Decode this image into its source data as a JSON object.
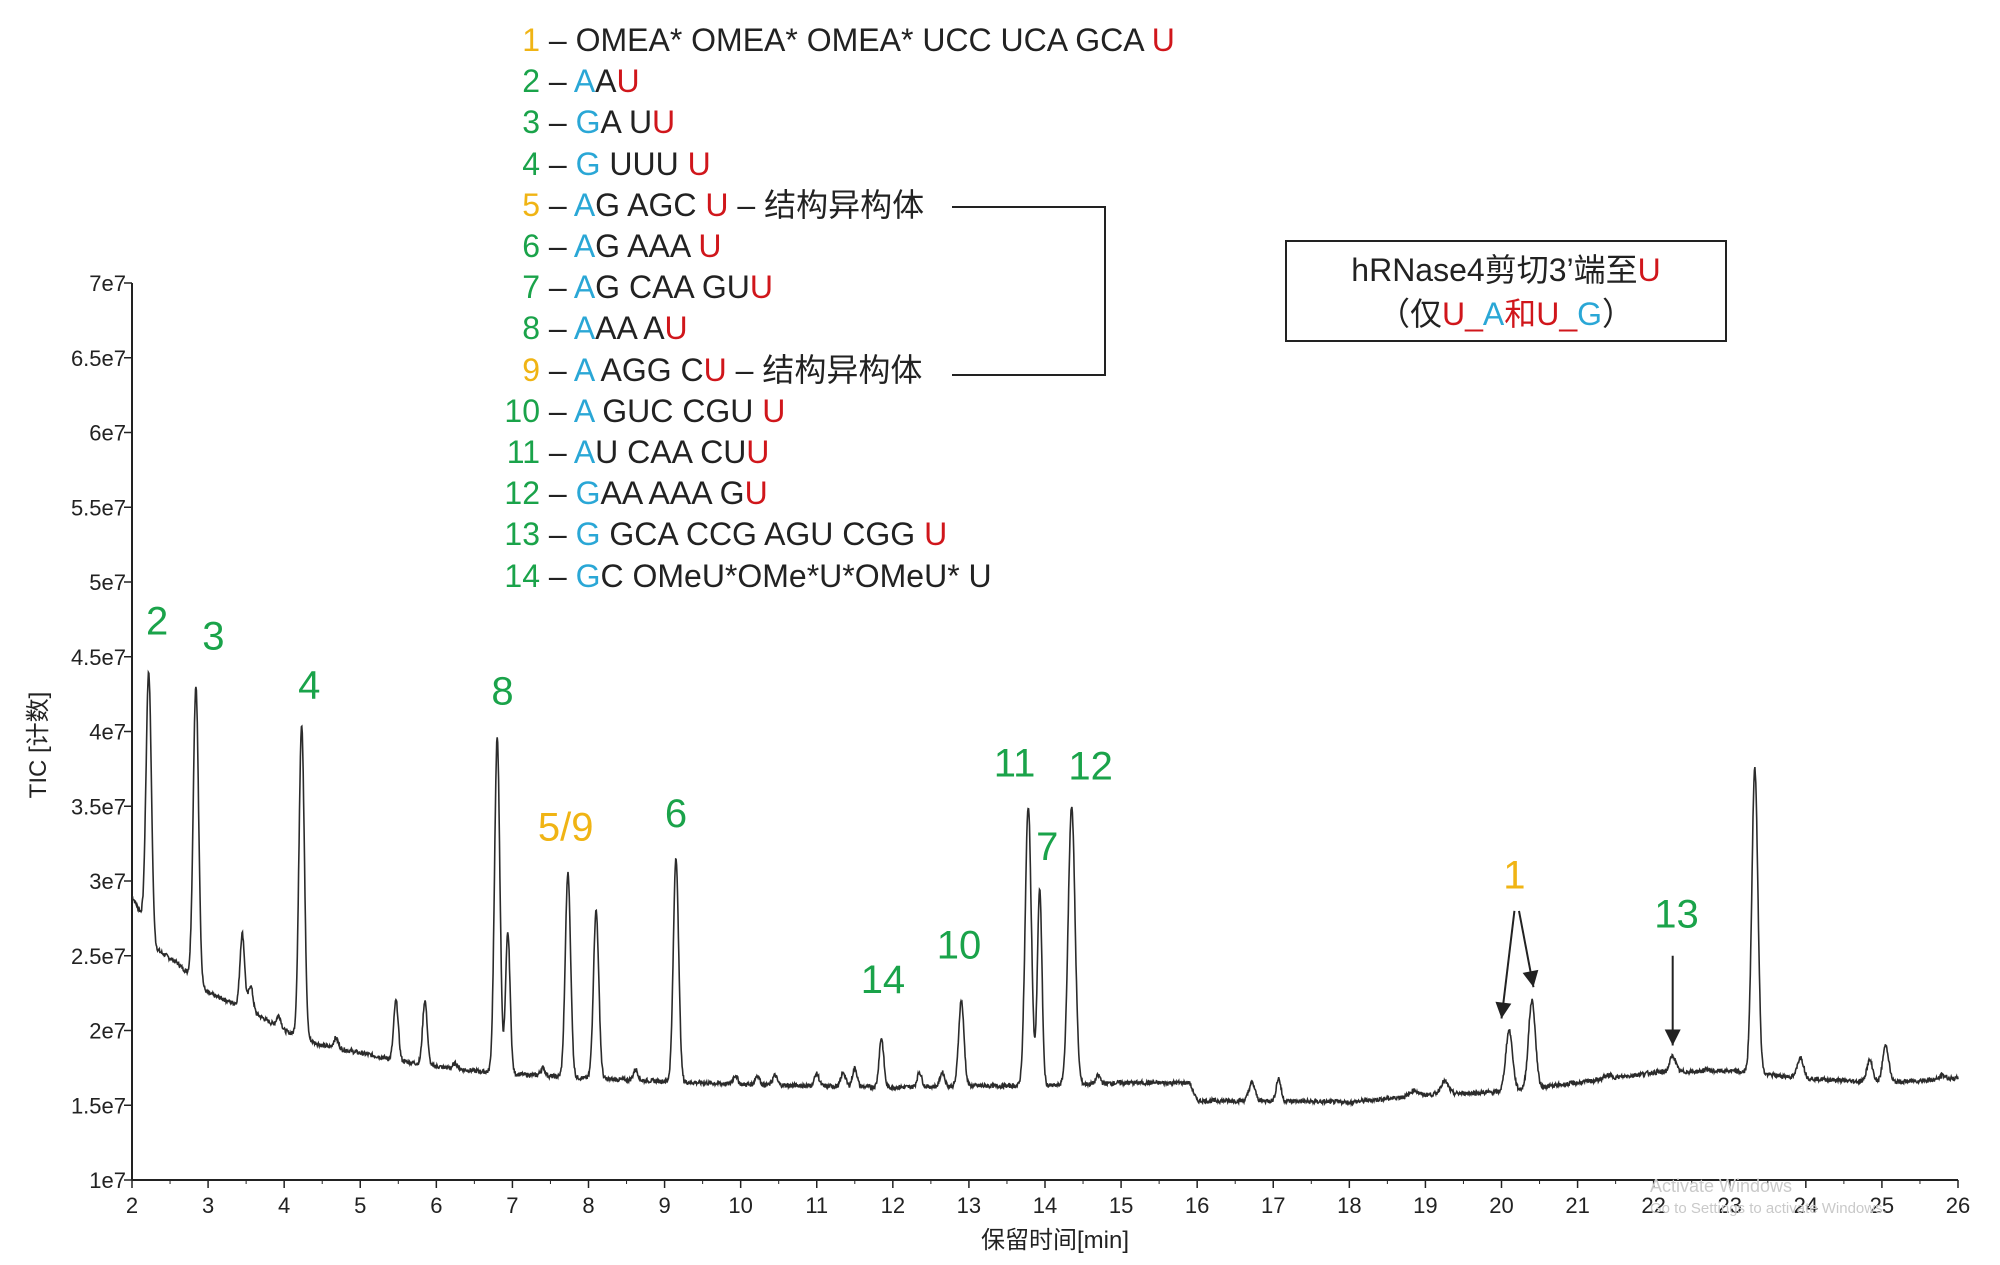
{
  "chart_data": {
    "type": "line",
    "title": "",
    "xlabel": "保留时间[min]",
    "ylabel": "TIC [计数]",
    "xlim": [
      2,
      26
    ],
    "ylim": [
      10000000,
      70000000
    ],
    "x_ticks": [
      2,
      3,
      4,
      5,
      6,
      7,
      8,
      9,
      10,
      11,
      12,
      13,
      14,
      15,
      16,
      17,
      18,
      19,
      20,
      21,
      22,
      23,
      24,
      25,
      26
    ],
    "y_ticks": [
      10000000,
      15000000,
      20000000,
      25000000,
      30000000,
      35000000,
      40000000,
      45000000,
      50000000,
      55000000,
      60000000,
      65000000,
      70000000
    ],
    "y_tick_labels": [
      "1e7",
      "1.5e7",
      "2e7",
      "2.5e7",
      "3e7",
      "3.5e7",
      "4e7",
      "4.5e7",
      "5e7",
      "5.5e7",
      "6e7",
      "6.5e7",
      "7e7"
    ],
    "x_tick_labels": [
      "2",
      "3",
      "4",
      "5",
      "6",
      "7",
      "8",
      "9",
      "10",
      "11",
      "12",
      "13",
      "14",
      "15",
      "16",
      "17",
      "18",
      "19",
      "20",
      "21",
      "22",
      "23",
      "24",
      "25",
      "26"
    ],
    "grid": false,
    "baseline": [
      [
        2.0,
        29000000
      ],
      [
        2.1,
        28000000
      ],
      [
        2.3,
        25500000
      ],
      [
        2.6,
        24500000
      ],
      [
        3.0,
        22500000
      ],
      [
        3.5,
        21500000
      ],
      [
        4.0,
        20000000
      ],
      [
        4.5,
        19000000
      ],
      [
        5.0,
        18500000
      ],
      [
        5.5,
        18000000
      ],
      [
        6.0,
        17600000
      ],
      [
        6.5,
        17300000
      ],
      [
        7.0,
        17100000
      ],
      [
        8.0,
        16800000
      ],
      [
        9.0,
        16600000
      ],
      [
        10.0,
        16400000
      ],
      [
        11.0,
        16300000
      ],
      [
        12.0,
        16200000
      ],
      [
        13.0,
        16300000
      ],
      [
        14.0,
        16300000
      ],
      [
        15.0,
        16500000
      ],
      [
        15.9,
        16500000
      ],
      [
        16.0,
        15300000
      ],
      [
        17.0,
        15300000
      ],
      [
        18.0,
        15200000
      ],
      [
        19.0,
        15700000
      ],
      [
        20.0,
        15900000
      ],
      [
        21.0,
        16500000
      ],
      [
        22.0,
        17200000
      ],
      [
        23.0,
        17300000
      ],
      [
        24.0,
        16800000
      ],
      [
        25.0,
        16500000
      ],
      [
        26.0,
        16800000
      ]
    ],
    "peaks": [
      {
        "x": 2.22,
        "y": 44000000,
        "w": 0.035
      },
      {
        "x": 2.84,
        "y": 43000000,
        "w": 0.035
      },
      {
        "x": 3.45,
        "y": 26500000,
        "w": 0.03
      },
      {
        "x": 3.56,
        "y": 23000000,
        "w": 0.03
      },
      {
        "x": 3.93,
        "y": 21000000,
        "w": 0.03
      },
      {
        "x": 4.23,
        "y": 40500000,
        "w": 0.035
      },
      {
        "x": 4.68,
        "y": 19500000,
        "w": 0.03
      },
      {
        "x": 5.47,
        "y": 22000000,
        "w": 0.03
      },
      {
        "x": 5.85,
        "y": 22000000,
        "w": 0.03
      },
      {
        "x": 6.25,
        "y": 17800000,
        "w": 0.03
      },
      {
        "x": 6.8,
        "y": 39500000,
        "w": 0.035
      },
      {
        "x": 6.94,
        "y": 26500000,
        "w": 0.03
      },
      {
        "x": 7.4,
        "y": 17500000,
        "w": 0.03
      },
      {
        "x": 7.73,
        "y": 30500000,
        "w": 0.035
      },
      {
        "x": 8.1,
        "y": 28000000,
        "w": 0.035
      },
      {
        "x": 8.62,
        "y": 17400000,
        "w": 0.03
      },
      {
        "x": 9.15,
        "y": 31500000,
        "w": 0.035
      },
      {
        "x": 9.93,
        "y": 17000000,
        "w": 0.03
      },
      {
        "x": 10.22,
        "y": 17000000,
        "w": 0.03
      },
      {
        "x": 10.45,
        "y": 17000000,
        "w": 0.03
      },
      {
        "x": 11.0,
        "y": 17100000,
        "w": 0.03
      },
      {
        "x": 11.35,
        "y": 17200000,
        "w": 0.03
      },
      {
        "x": 11.5,
        "y": 17500000,
        "w": 0.03
      },
      {
        "x": 11.85,
        "y": 19500000,
        "w": 0.03
      },
      {
        "x": 12.35,
        "y": 17200000,
        "w": 0.03
      },
      {
        "x": 12.65,
        "y": 17200000,
        "w": 0.03
      },
      {
        "x": 12.9,
        "y": 22000000,
        "w": 0.035
      },
      {
        "x": 13.78,
        "y": 35000000,
        "w": 0.04
      },
      {
        "x": 13.93,
        "y": 29500000,
        "w": 0.03
      },
      {
        "x": 14.35,
        "y": 35000000,
        "w": 0.045
      },
      {
        "x": 14.7,
        "y": 17000000,
        "w": 0.03
      },
      {
        "x": 16.72,
        "y": 16500000,
        "w": 0.04
      },
      {
        "x": 17.07,
        "y": 16800000,
        "w": 0.03
      },
      {
        "x": 18.85,
        "y": 16000000,
        "w": 0.05
      },
      {
        "x": 19.25,
        "y": 16600000,
        "w": 0.05
      },
      {
        "x": 20.1,
        "y": 20000000,
        "w": 0.045
      },
      {
        "x": 20.4,
        "y": 22000000,
        "w": 0.045
      },
      {
        "x": 21.4,
        "y": 17000000,
        "w": 0.05
      },
      {
        "x": 22.25,
        "y": 18300000,
        "w": 0.04
      },
      {
        "x": 22.7,
        "y": 17400000,
        "w": 0.04
      },
      {
        "x": 23.33,
        "y": 37500000,
        "w": 0.04
      },
      {
        "x": 23.93,
        "y": 18200000,
        "w": 0.04
      },
      {
        "x": 24.84,
        "y": 18000000,
        "w": 0.04
      },
      {
        "x": 25.05,
        "y": 19000000,
        "w": 0.04
      },
      {
        "x": 25.8,
        "y": 17000000,
        "w": 0.04
      }
    ],
    "peak_labels": [
      {
        "text": "2",
        "x": 2.33,
        "y": 46500000,
        "color": "#1aa34a"
      },
      {
        "text": "3",
        "x": 3.07,
        "y": 45500000,
        "color": "#1aa34a"
      },
      {
        "text": "4",
        "x": 4.33,
        "y": 42200000,
        "color": "#1aa34a"
      },
      {
        "text": "8",
        "x": 6.87,
        "y": 41800000,
        "color": "#1aa34a"
      },
      {
        "text": "5/9",
        "x": 7.7,
        "y": 32700000,
        "color": "#f0b414"
      },
      {
        "text": "6",
        "x": 9.15,
        "y": 33600000,
        "color": "#1aa34a"
      },
      {
        "text": "11",
        "x": 13.6,
        "y": 37000000,
        "color": "#1aa34a"
      },
      {
        "text": "12",
        "x": 14.6,
        "y": 36800000,
        "color": "#1aa34a"
      },
      {
        "text": "7",
        "x": 14.03,
        "y": 31400000,
        "color": "#1aa34a"
      },
      {
        "text": "14",
        "x": 11.87,
        "y": 22500000,
        "color": "#1aa34a"
      },
      {
        "text": "10",
        "x": 12.87,
        "y": 24800000,
        "color": "#1aa34a"
      },
      {
        "text": "1",
        "x": 20.17,
        "y": 29500000,
        "color": "#f0b414"
      },
      {
        "text": "13",
        "x": 22.3,
        "y": 26900000,
        "color": "#1aa34a"
      }
    ],
    "arrows": [
      {
        "from": [
          20.17,
          28000000
        ],
        "to": [
          20.0,
          20800000
        ]
      },
      {
        "from": [
          20.23,
          28000000
        ],
        "to": [
          20.42,
          22900000
        ]
      },
      {
        "from": [
          22.25,
          25000000
        ],
        "to": [
          22.25,
          19000000
        ]
      }
    ]
  },
  "legend": {
    "rows": [
      {
        "num": "1",
        "num_color": "#f0b414",
        "segs": [
          {
            "t": " – OMEA* OMEA* OMEA* UCC UCA GCA ",
            "c": "k"
          },
          {
            "t": "U",
            "c": "r"
          }
        ]
      },
      {
        "num": "2",
        "num_color": "#1aa34a",
        "segs": [
          {
            "t": " – ",
            "c": "k"
          },
          {
            "t": "A",
            "c": "b"
          },
          {
            "t": "A",
            "c": "k"
          },
          {
            "t": "U",
            "c": "r"
          }
        ]
      },
      {
        "num": "3",
        "num_color": "#1aa34a",
        "segs": [
          {
            "t": " – ",
            "c": "k"
          },
          {
            "t": "G",
            "c": "b"
          },
          {
            "t": "A U",
            "c": "k"
          },
          {
            "t": "U",
            "c": "r"
          }
        ]
      },
      {
        "num": "4",
        "num_color": "#1aa34a",
        "segs": [
          {
            "t": " – ",
            "c": "k"
          },
          {
            "t": "G",
            "c": "b"
          },
          {
            "t": " UUU ",
            "c": "k"
          },
          {
            "t": "U",
            "c": "r"
          }
        ]
      },
      {
        "num": "5",
        "num_color": "#f0b414",
        "segs": [
          {
            "t": " – ",
            "c": "k"
          },
          {
            "t": "A",
            "c": "b"
          },
          {
            "t": "G AGC ",
            "c": "k"
          },
          {
            "t": "U",
            "c": "r"
          },
          {
            "t": " – 结构异构体",
            "c": "k"
          }
        ]
      },
      {
        "num": "6",
        "num_color": "#1aa34a",
        "segs": [
          {
            "t": " – ",
            "c": "k"
          },
          {
            "t": "A",
            "c": "b"
          },
          {
            "t": "G AAA ",
            "c": "k"
          },
          {
            "t": "U",
            "c": "r"
          }
        ]
      },
      {
        "num": "7",
        "num_color": "#1aa34a",
        "segs": [
          {
            "t": " – ",
            "c": "k"
          },
          {
            "t": "A",
            "c": "b"
          },
          {
            "t": "G CAA GU",
            "c": "k"
          },
          {
            "t": "U",
            "c": "r"
          }
        ]
      },
      {
        "num": "8",
        "num_color": "#1aa34a",
        "segs": [
          {
            "t": " – ",
            "c": "k"
          },
          {
            "t": "A",
            "c": "b"
          },
          {
            "t": "AA A",
            "c": "k"
          },
          {
            "t": "U",
            "c": "r"
          }
        ]
      },
      {
        "num": "9",
        "num_color": "#f0b414",
        "segs": [
          {
            "t": " – ",
            "c": "k"
          },
          {
            "t": "A",
            "c": "b"
          },
          {
            "t": " AGG C",
            "c": "k"
          },
          {
            "t": "U",
            "c": "r"
          },
          {
            "t": " – 结构异构体",
            "c": "k"
          }
        ]
      },
      {
        "num": "10",
        "num_color": "#1aa34a",
        "segs": [
          {
            "t": " – ",
            "c": "k"
          },
          {
            "t": "A",
            "c": "b"
          },
          {
            "t": " GUC CGU ",
            "c": "k"
          },
          {
            "t": "U",
            "c": "r"
          }
        ]
      },
      {
        "num": "11",
        "num_color": "#1aa34a",
        "segs": [
          {
            "t": " – ",
            "c": "k"
          },
          {
            "t": "A",
            "c": "b"
          },
          {
            "t": "U CAA CU",
            "c": "k"
          },
          {
            "t": "U",
            "c": "r"
          }
        ]
      },
      {
        "num": "12",
        "num_color": "#1aa34a",
        "segs": [
          {
            "t": " – ",
            "c": "k"
          },
          {
            "t": "G",
            "c": "b"
          },
          {
            "t": "AA AAA G",
            "c": "k"
          },
          {
            "t": "U",
            "c": "r"
          }
        ]
      },
      {
        "num": "13",
        "num_color": "#1aa34a",
        "segs": [
          {
            "t": " – ",
            "c": "k"
          },
          {
            "t": "G",
            "c": "b"
          },
          {
            "t": " GCA CCG AGU CGG ",
            "c": "k"
          },
          {
            "t": "U",
            "c": "r"
          }
        ]
      },
      {
        "num": "14",
        "num_color": "#1aa34a",
        "segs": [
          {
            "t": " – ",
            "c": "k"
          },
          {
            "t": "G",
            "c": "b"
          },
          {
            "t": "C OMeU*OMe*U*OMeU* U",
            "c": "k"
          }
        ]
      }
    ]
  },
  "cleave_box": {
    "l1a": "hRNase4剪切3’端至",
    "l1b": "U",
    "l2a": "（仅",
    "l2b": "U",
    "l2c": "_",
    "l2d": "A",
    "l2e": "和",
    "l2f": "U",
    "l2g": "_",
    "l2h": "G",
    "l2i": "）"
  },
  "watermark": {
    "line1": "Activate Windows",
    "line2": "Go to Settings to activate Windows."
  },
  "colors": {
    "trace": "#2b2b2b",
    "green": "#1aa34a",
    "yellow": "#f0b414",
    "blue": "#2aa7d6",
    "red": "#d0161b"
  }
}
